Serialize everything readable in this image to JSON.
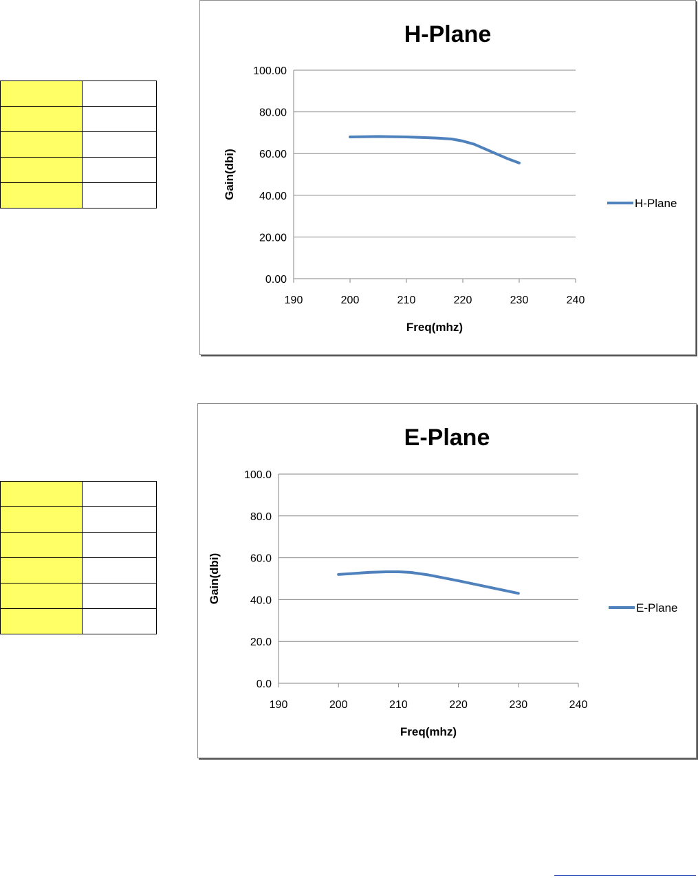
{
  "colors": {
    "table_fill": "#ffff66",
    "series_line": "#4f81bd",
    "gridline": "#868686",
    "frame_border": "#8c8c8c",
    "footer_rule": "#2a4fb8"
  },
  "tables": [
    {
      "rows": 5
    },
    {
      "rows": 6
    }
  ],
  "chart_data": [
    {
      "type": "line",
      "title": "H-Plane",
      "xlabel": "Freq(mhz)",
      "ylabel": "Gain(dbi)",
      "xlim": [
        190,
        240
      ],
      "ylim": [
        0,
        100
      ],
      "xticks": [
        190,
        200,
        210,
        220,
        230,
        240
      ],
      "yticks": [
        0,
        20,
        40,
        60,
        80,
        100
      ],
      "ytick_labels": [
        "0.00",
        "20.00",
        "40.00",
        "60.00",
        "80.00",
        "100.00"
      ],
      "grid": true,
      "legend": "right",
      "series": [
        {
          "name": "H-Plane",
          "x": [
            200,
            205,
            210,
            215,
            218,
            220,
            222,
            225,
            228,
            230
          ],
          "y": [
            68.0,
            68.2,
            68.0,
            67.5,
            67.0,
            66.0,
            64.5,
            61.0,
            57.5,
            55.5
          ]
        }
      ]
    },
    {
      "type": "line",
      "title": "E-Plane",
      "xlabel": "Freq(mhz)",
      "ylabel": "Gain(dbi)",
      "xlim": [
        190,
        240
      ],
      "ylim": [
        0,
        100
      ],
      "xticks": [
        190,
        200,
        210,
        220,
        230,
        240
      ],
      "yticks": [
        0,
        20,
        40,
        60,
        80,
        100
      ],
      "ytick_labels": [
        "0.0",
        "20.0",
        "40.0",
        "60.0",
        "80.0",
        "100.0"
      ],
      "grid": true,
      "legend": "right",
      "series": [
        {
          "name": "E-Plane",
          "x": [
            200,
            205,
            208,
            210,
            212,
            215,
            220,
            225,
            230
          ],
          "y": [
            52.0,
            53.0,
            53.3,
            53.3,
            53.0,
            51.8,
            49.0,
            46.0,
            43.0
          ]
        }
      ]
    }
  ]
}
